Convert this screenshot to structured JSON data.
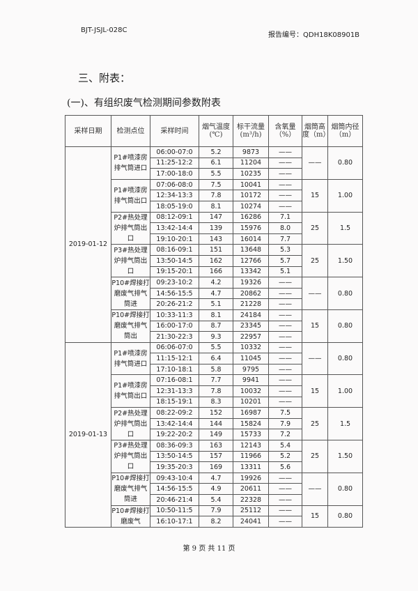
{
  "header": {
    "doc_code": "BJT-JSJL-028C",
    "report_no": "报告编号：QDH18K08901B"
  },
  "section_title": "三、附表：",
  "sub_title": "(一)、有组织废气检测期间参数附表",
  "table": {
    "columns": [
      "采样日期",
      "检测点位",
      "采样时间",
      "烟气温度(℃)",
      "标干流量(m³/h)",
      "含氧量（%）",
      "烟筒高度（m）",
      "烟筒内径（m）"
    ],
    "dates": [
      {
        "date": "2019-01-12",
        "groups": [
          {
            "point": "P1#喷漆房排气筒进口",
            "height": "——",
            "diameter": "0.80",
            "rows": [
              [
                "06:00-07:0",
                "5.2",
                "9873",
                "——"
              ],
              [
                "11:25-12:2",
                "6.1",
                "11204",
                "——"
              ],
              [
                "17:00-18:0",
                "5.5",
                "10235",
                "——"
              ]
            ]
          },
          {
            "point": "P1#喷漆房排气筒出口",
            "height": "15",
            "diameter": "1.00",
            "rows": [
              [
                "07:06-08:0",
                "7.5",
                "10041",
                "——"
              ],
              [
                "12:34-13:3",
                "7.8",
                "10172",
                "——"
              ],
              [
                "18:05-19:0",
                "8.1",
                "10274",
                "——"
              ]
            ]
          },
          {
            "point": "P2#热处理炉排气筒出口",
            "height": "25",
            "diameter": "1.5",
            "rows": [
              [
                "08:12-09:1",
                "147",
                "16286",
                "7.1"
              ],
              [
                "13:42-14:4",
                "139",
                "15976",
                "8.0"
              ],
              [
                "19:10-20:1",
                "143",
                "16014",
                "7.7"
              ]
            ]
          },
          {
            "point": "P3#热处理炉排气筒出口",
            "height": "25",
            "diameter": "1.50",
            "rows": [
              [
                "08:16-09:1",
                "151",
                "13648",
                "5.3"
              ],
              [
                "13:50-14:5",
                "162",
                "12766",
                "5.7"
              ],
              [
                "19:15-20:1",
                "166",
                "13342",
                "5.1"
              ]
            ]
          },
          {
            "point": "P10#焊接打磨废气排气筒进",
            "height": "——",
            "diameter": "0.80",
            "rows": [
              [
                "09:23-10:2",
                "4.2",
                "19326",
                "——"
              ],
              [
                "14:56-15:5",
                "4.7",
                "20862",
                "——"
              ],
              [
                "20:26-21:2",
                "5.1",
                "21228",
                "——"
              ]
            ]
          },
          {
            "point": "P10#焊接打磨废气排气筒出",
            "height": "15",
            "diameter": "0.80",
            "rows": [
              [
                "10:33-11:3",
                "8.1",
                "24184",
                "——"
              ],
              [
                "16:00-17:0",
                "8.7",
                "23345",
                "——"
              ],
              [
                "21:30-22:3",
                "9.3",
                "22957",
                "——"
              ]
            ]
          }
        ]
      },
      {
        "date": "2019-01-13",
        "groups": [
          {
            "point": "P1#喷漆房排气筒进口",
            "height": "——",
            "diameter": "0.80",
            "rows": [
              [
                "06:06-07:0",
                "5.5",
                "10332",
                "——"
              ],
              [
                "11:15-12:1",
                "6.4",
                "11045",
                "——"
              ],
              [
                "17:10-18:1",
                "5.8",
                "9795",
                "——"
              ]
            ]
          },
          {
            "point": "P1#喷漆房排气筒出口",
            "height": "15",
            "diameter": "1.00",
            "rows": [
              [
                "07:16-08:1",
                "7.7",
                "9941",
                "——"
              ],
              [
                "12:31-13:3",
                "7.8",
                "10032",
                "——"
              ],
              [
                "18:15-19:1",
                "8.3",
                "10201",
                "——"
              ]
            ]
          },
          {
            "point": "P2#热处理炉排气筒出口",
            "height": "25",
            "diameter": "1.5",
            "rows": [
              [
                "08:22-09:2",
                "152",
                "16987",
                "7.5"
              ],
              [
                "13:42-14:4",
                "144",
                "15824",
                "7.9"
              ],
              [
                "19:22-20:2",
                "149",
                "15733",
                "7.2"
              ]
            ]
          },
          {
            "point": "P3#热处理炉排气筒出口",
            "height": "25",
            "diameter": "1.50",
            "rows": [
              [
                "08:36-09:3",
                "163",
                "12143",
                "5.4"
              ],
              [
                "13:50-14:5",
                "157",
                "11966",
                "5.2"
              ],
              [
                "19:35-20:3",
                "169",
                "13311",
                "5.6"
              ]
            ]
          },
          {
            "point": "P10#焊接打磨废气排气筒进",
            "height": "——",
            "diameter": "0.80",
            "rows": [
              [
                "09:43-10:4",
                "4.7",
                "19926",
                "——"
              ],
              [
                "14:56-15:5",
                "4.9",
                "20611",
                "——"
              ],
              [
                "20:46-21:4",
                "5.4",
                "22328",
                "——"
              ]
            ]
          },
          {
            "point": "P10#焊接打磨废气",
            "height": "15",
            "diameter": "0.80",
            "rows": [
              [
                "10:50-11:5",
                "7.9",
                "25112",
                "——"
              ],
              [
                "16:10-17:1",
                "8.2",
                "24041",
                "——"
              ]
            ]
          }
        ]
      }
    ]
  },
  "footer": "第 9 页 共 11 页"
}
